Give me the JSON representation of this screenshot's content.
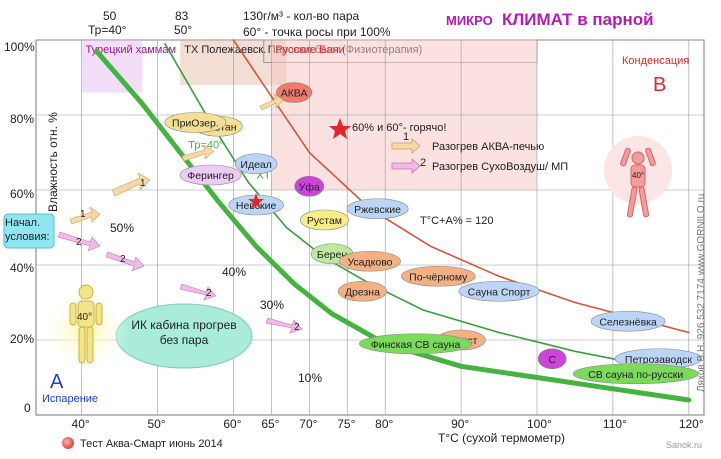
{
  "chart_data": {
    "type": "area",
    "title_prefix": "МИКРО",
    "title_main": "КЛИМАТ в парной",
    "xlabel": "T°C (сухой термометр)",
    "ylabel": "Влажность отн. %",
    "x_ticks": [
      "40°",
      "50°",
      "60°",
      "65°",
      "70°",
      "75°",
      "80°",
      "90°",
      "100°",
      "110°",
      "120°"
    ],
    "y_ticks": [
      "100%",
      "80%",
      "60%",
      "40%",
      "20%",
      "0"
    ],
    "top_ticks": [
      {
        "num": "50",
        "t": "Тр=40°"
      },
      {
        "num": "83",
        "t": "50°"
      }
    ],
    "top_note1": "130г/м³ - кол-во пара",
    "top_note2": "60° - точка росы при 100%",
    "footer": "Тест Аква-Смарт июнь 2014",
    "side_credit": "Ляхов В.Н.   926 532 7174   www.GORNILO.ru",
    "watermark": "Sanok.ru",
    "corner_a_letter": "А",
    "corner_a_label": "Испарение",
    "corner_b_letter": "В",
    "corner_b_label": "Конденсация",
    "start_label": "Начал. условия:",
    "figure_temp": "40°",
    "ir_cabin_label": "ИК кабина прогрев без пара",
    "legend": [
      {
        "num": "1",
        "label": "Разогрев АКВА-печью",
        "color": "#f7d9a8"
      },
      {
        "num": "2",
        "label": "Разогрев СухоВоздуш/ МП",
        "color": "#f2b8e8"
      }
    ],
    "star_label": "60% и 60°- горячо!",
    "formula": "T°C+A% = 120",
    "ranges": [
      {
        "label": "Турецкий хаммам",
        "x": [
          40,
          48
        ],
        "y": [
          86,
          100
        ],
        "color": "#e7c3ee",
        "text_color": "#a0188c"
      },
      {
        "label": "ТХ Полежаевск.",
        "x": [
          53,
          67
        ],
        "y": [
          88,
          100
        ],
        "color": "#eac2b4",
        "text_color": "#222222"
      },
      {
        "label": "Паровая баня (Физиотерапия)",
        "x": [
          64,
          100
        ],
        "y": [
          94,
          100
        ],
        "color": "none",
        "text_color": "#222222"
      },
      {
        "label": "Русские Бани",
        "x": [
          65,
          100
        ],
        "y": [
          60,
          100
        ],
        "color": "#f8c9c5",
        "text_color": "#e0282a"
      }
    ],
    "iso_lines": [
      {
        "label": "Тр=40°",
        "points": [
          [
            42,
            97
          ],
          [
            48,
            83
          ],
          [
            53,
            70
          ],
          [
            58,
            57
          ],
          [
            63,
            45
          ],
          [
            68,
            35
          ],
          [
            73,
            27
          ],
          [
            80,
            19
          ],
          [
            90,
            13
          ],
          [
            100,
            10
          ],
          [
            110,
            7
          ],
          [
            120,
            4
          ]
        ],
        "color": "#45b340"
      },
      {
        "label": "ХТ",
        "points": [
          [
            51,
            99
          ],
          [
            57,
            78
          ],
          [
            62,
            62
          ],
          [
            67,
            50
          ],
          [
            72,
            42
          ],
          [
            78,
            35
          ],
          [
            85,
            28
          ],
          [
            95,
            22
          ],
          [
            105,
            17
          ],
          [
            115,
            13
          ],
          [
            120,
            11
          ]
        ],
        "color": "#3a9e3a"
      },
      {
        "label": "",
        "points": [
          [
            60,
            100
          ],
          [
            65,
            85
          ],
          [
            70,
            70
          ],
          [
            78,
            55
          ],
          [
            86,
            45
          ],
          [
            95,
            37
          ],
          [
            105,
            30
          ],
          [
            120,
            22
          ]
        ],
        "color": "#d4543a"
      }
    ],
    "zones": [
      {
        "label": "АКВА",
        "x": 68,
        "y": 86,
        "color": "#ef7b6d"
      },
      {
        "label": "Каштан",
        "x": 58,
        "y": 77,
        "color": "#f4e093"
      },
      {
        "label": "ПриОзер.",
        "x": 55,
        "y": 78,
        "color": "#f4e093"
      },
      {
        "label": "Ферингер",
        "x": 57,
        "y": 64,
        "color": "#ecccf4"
      },
      {
        "label": "Идеал",
        "x": 63,
        "y": 67,
        "color": "#bcd4f6"
      },
      {
        "label": "Уфа",
        "x": 70,
        "y": 61,
        "color": "#cc44d8"
      },
      {
        "label": "Невские",
        "x": 63,
        "y": 56,
        "color": "#bcd4f6"
      },
      {
        "label": "Рустам",
        "x": 72,
        "y": 52,
        "color": "#f7ed86"
      },
      {
        "label": "Ржевские",
        "x": 79,
        "y": 55,
        "color": "#bcd4f6"
      },
      {
        "label": "Берен",
        "x": 73,
        "y": 43,
        "color": "#bde8a0"
      },
      {
        "label": "Усадково",
        "x": 78,
        "y": 41,
        "color": "#f2b083"
      },
      {
        "label": "Дрезна",
        "x": 77,
        "y": 33,
        "color": "#f2b083"
      },
      {
        "label": "По-чёрному",
        "x": 87,
        "y": 37,
        "color": "#f2b083"
      },
      {
        "label": "Сауна Спорт",
        "x": 95,
        "y": 33,
        "color": "#bcd4f6"
      },
      {
        "label": "Селезнёвка",
        "x": 112,
        "y": 25,
        "color": "#bcd4f6"
      },
      {
        "label": "Турист",
        "x": 90,
        "y": 20,
        "color": "#f2b083"
      },
      {
        "label": "С",
        "x": 102,
        "y": 15,
        "color": "#cc44d8"
      },
      {
        "label": "Петрозаводск",
        "x": 116,
        "y": 15,
        "color": "#bcd4f6"
      },
      {
        "label": "Финская СВ сауна",
        "x": 84,
        "y": 19,
        "color": "#7bd95c"
      },
      {
        "label": "СВ сауна по-русски",
        "x": 113,
        "y": 11,
        "color": "#7bd95c"
      }
    ],
    "rh_marks": [
      "50%",
      "40%",
      "30%",
      "10%"
    ],
    "xlim": [
      34,
      122
    ],
    "ylim": [
      0,
      100
    ],
    "grid": true
  }
}
